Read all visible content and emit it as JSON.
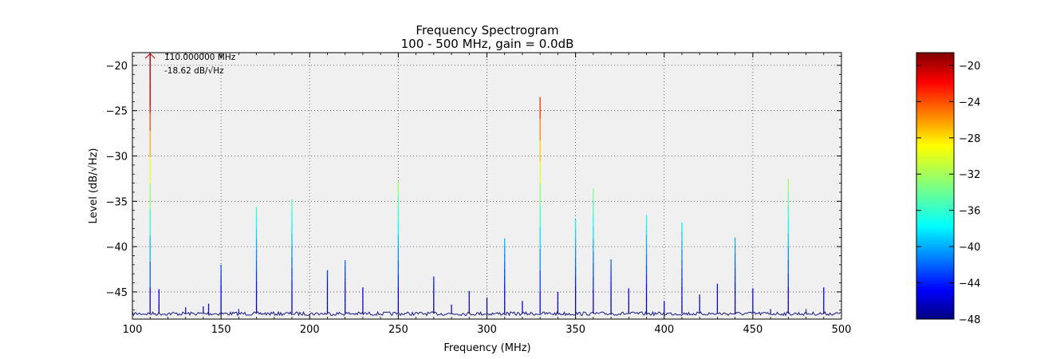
{
  "chart_data": {
    "type": "line",
    "title": "Frequency Spectrogram",
    "subtitle": "100 - 500 MHz, gain = 0.0dB",
    "xlabel": "Frequency (MHz)",
    "ylabel": "Level (dB/√Hz)",
    "xlim": [
      100,
      500
    ],
    "ylim": [
      -48,
      -18.6
    ],
    "xticks": [
      100,
      150,
      200,
      250,
      300,
      350,
      400,
      450,
      500
    ],
    "yticks": [
      -45,
      -40,
      -35,
      -30,
      -25,
      -20
    ],
    "grid": true,
    "noise_floor": -47.4,
    "peaks": [
      {
        "x": 110,
        "y": -18.62
      },
      {
        "x": 115,
        "y": -44.7
      },
      {
        "x": 130,
        "y": -46.7
      },
      {
        "x": 140,
        "y": -46.6
      },
      {
        "x": 143,
        "y": -46.3
      },
      {
        "x": 150,
        "y": -42.0
      },
      {
        "x": 160,
        "y": -46.9
      },
      {
        "x": 170,
        "y": -35.6
      },
      {
        "x": 190,
        "y": -34.8
      },
      {
        "x": 210,
        "y": -42.6
      },
      {
        "x": 220,
        "y": -41.5
      },
      {
        "x": 230,
        "y": -44.5
      },
      {
        "x": 250,
        "y": -32.8
      },
      {
        "x": 270,
        "y": -43.3
      },
      {
        "x": 280,
        "y": -46.4
      },
      {
        "x": 290,
        "y": -44.9
      },
      {
        "x": 300,
        "y": -45.6
      },
      {
        "x": 310,
        "y": -39.1
      },
      {
        "x": 320,
        "y": -46.0
      },
      {
        "x": 330,
        "y": -23.5
      },
      {
        "x": 340,
        "y": -45.0
      },
      {
        "x": 350,
        "y": -37.0
      },
      {
        "x": 360,
        "y": -33.6
      },
      {
        "x": 370,
        "y": -41.4
      },
      {
        "x": 380,
        "y": -44.6
      },
      {
        "x": 390,
        "y": -36.5
      },
      {
        "x": 400,
        "y": -46.0
      },
      {
        "x": 410,
        "y": -37.3
      },
      {
        "x": 420,
        "y": -45.3
      },
      {
        "x": 430,
        "y": -44.1
      },
      {
        "x": 440,
        "y": -39.0
      },
      {
        "x": 450,
        "y": -44.6
      },
      {
        "x": 460,
        "y": -46.9
      },
      {
        "x": 470,
        "y": -32.5
      },
      {
        "x": 480,
        "y": -46.9
      },
      {
        "x": 490,
        "y": -44.5
      }
    ],
    "annotation": {
      "x": 110,
      "y": -18.62,
      "freq_text": "110.000000 MHz",
      "level_text": "-18.62 dB/√Hz",
      "color": "#cc0000"
    },
    "colorbar": {
      "ticks": [
        -20,
        -24,
        -28,
        -32,
        -36,
        -40,
        -44,
        -48
      ],
      "range": [
        -48,
        -18.6
      ],
      "colormap": "jet"
    },
    "colors": {
      "plot_background": "#f0f0f0",
      "noise_line": "#1a1a8c"
    }
  }
}
